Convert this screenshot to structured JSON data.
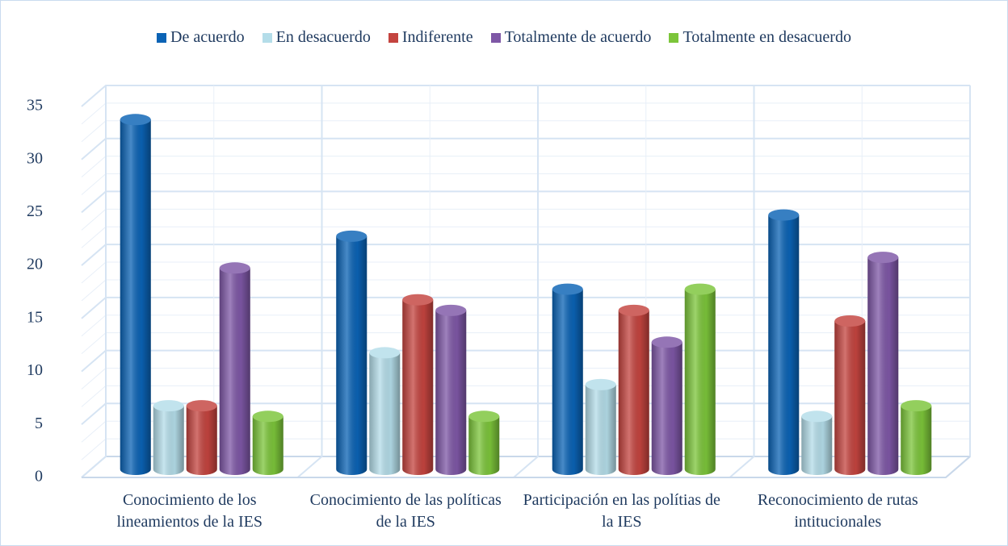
{
  "chart_data": {
    "type": "bar3d",
    "categories": [
      "Conocimiento de los lineamientos de la IES",
      "Conocimiento de las políticas de la IES",
      "Participación en las polítias de la IES",
      "Reconocimiento de rutas intitucionales"
    ],
    "series": [
      {
        "name": "De acuerdo",
        "color": "#0b63b5",
        "values": [
          33,
          22,
          17,
          24
        ]
      },
      {
        "name": "En desacuerdo",
        "color": "#b4dde9",
        "values": [
          6,
          11,
          8,
          5
        ]
      },
      {
        "name": "Indiferente",
        "color": "#c4443f",
        "values": [
          6,
          16,
          15,
          14
        ]
      },
      {
        "name": "Totalmente de acuerdo",
        "color": "#7e57a6",
        "values": [
          19,
          15,
          12,
          20
        ]
      },
      {
        "name": "Totalmente en desacuerdo",
        "color": "#7cc53a",
        "values": [
          5,
          5,
          17,
          6
        ]
      }
    ],
    "ylim": [
      0,
      35
    ],
    "yticks": [
      0,
      5,
      10,
      15,
      20,
      25,
      30,
      35
    ],
    "grid": true,
    "legend": "top"
  }
}
